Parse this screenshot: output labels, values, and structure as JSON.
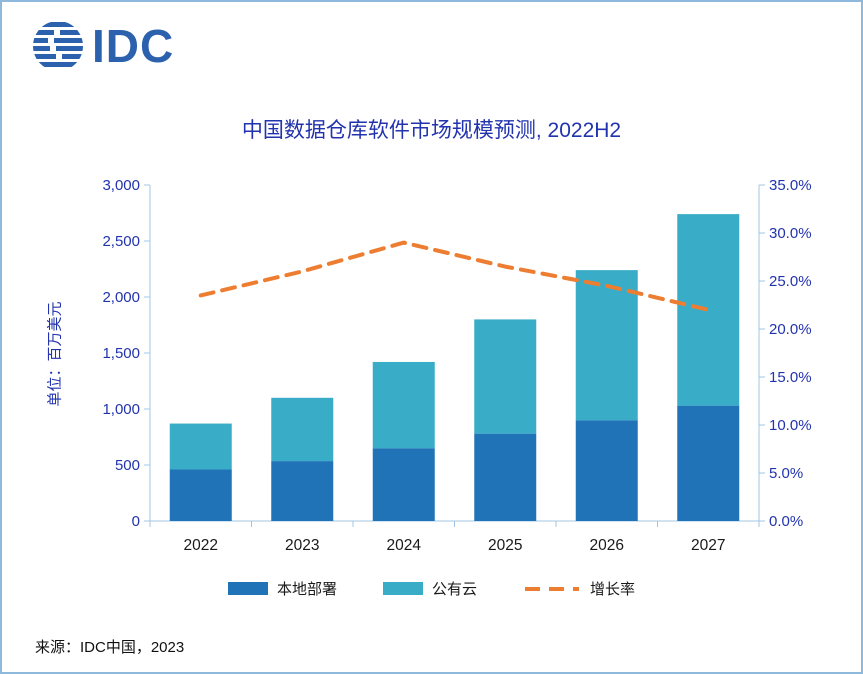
{
  "page": {
    "logo_text": "IDC",
    "title": "中国数据仓库软件市场规模预测, 2022H2",
    "source": "来源：IDC中国，2023"
  },
  "colors": {
    "accent_blue": "#2233AE",
    "logo_blue": "#2B61AD",
    "bar_onprem": "#2073B6",
    "bar_cloud": "#39ADC8",
    "line_orange": "#ED7D31",
    "axis_line": "#A3C4E0",
    "category_text": "#1A1A1A",
    "border": "#8FB9DC"
  },
  "chart_data": {
    "type": "bar",
    "subtype": "stacked-bar-with-line",
    "title": "中国数据仓库软件市场规模预测, 2022H2",
    "categories": [
      "2022",
      "2023",
      "2024",
      "2025",
      "2026",
      "2027"
    ],
    "series": [
      {
        "name": "本地部署",
        "type": "bar",
        "axis": "left",
        "color": "#2073B6",
        "values": [
          460,
          535,
          650,
          780,
          900,
          1030
        ]
      },
      {
        "name": "公有云",
        "type": "bar",
        "axis": "left",
        "color": "#39ADC8",
        "values": [
          410,
          565,
          770,
          1020,
          1340,
          1710
        ]
      },
      {
        "name": "增长率",
        "type": "line",
        "axis": "right",
        "color": "#ED7D31",
        "dashed": true,
        "values": [
          23.5,
          26.0,
          29.0,
          26.5,
          24.5,
          22.0
        ]
      }
    ],
    "left_axis": {
      "title": "单位：百万美元",
      "min": 0,
      "max": 3000,
      "step": 500,
      "ticks": [
        "0",
        "500",
        "1,000",
        "1,500",
        "2,000",
        "2,500",
        "3,000"
      ]
    },
    "right_axis": {
      "min": 0,
      "max": 35,
      "step": 5,
      "ticks": [
        "0.0%",
        "5.0%",
        "10.0%",
        "15.0%",
        "20.0%",
        "25.0%",
        "30.0%",
        "35.0%"
      ]
    },
    "legend_position": "bottom",
    "grid": false
  }
}
